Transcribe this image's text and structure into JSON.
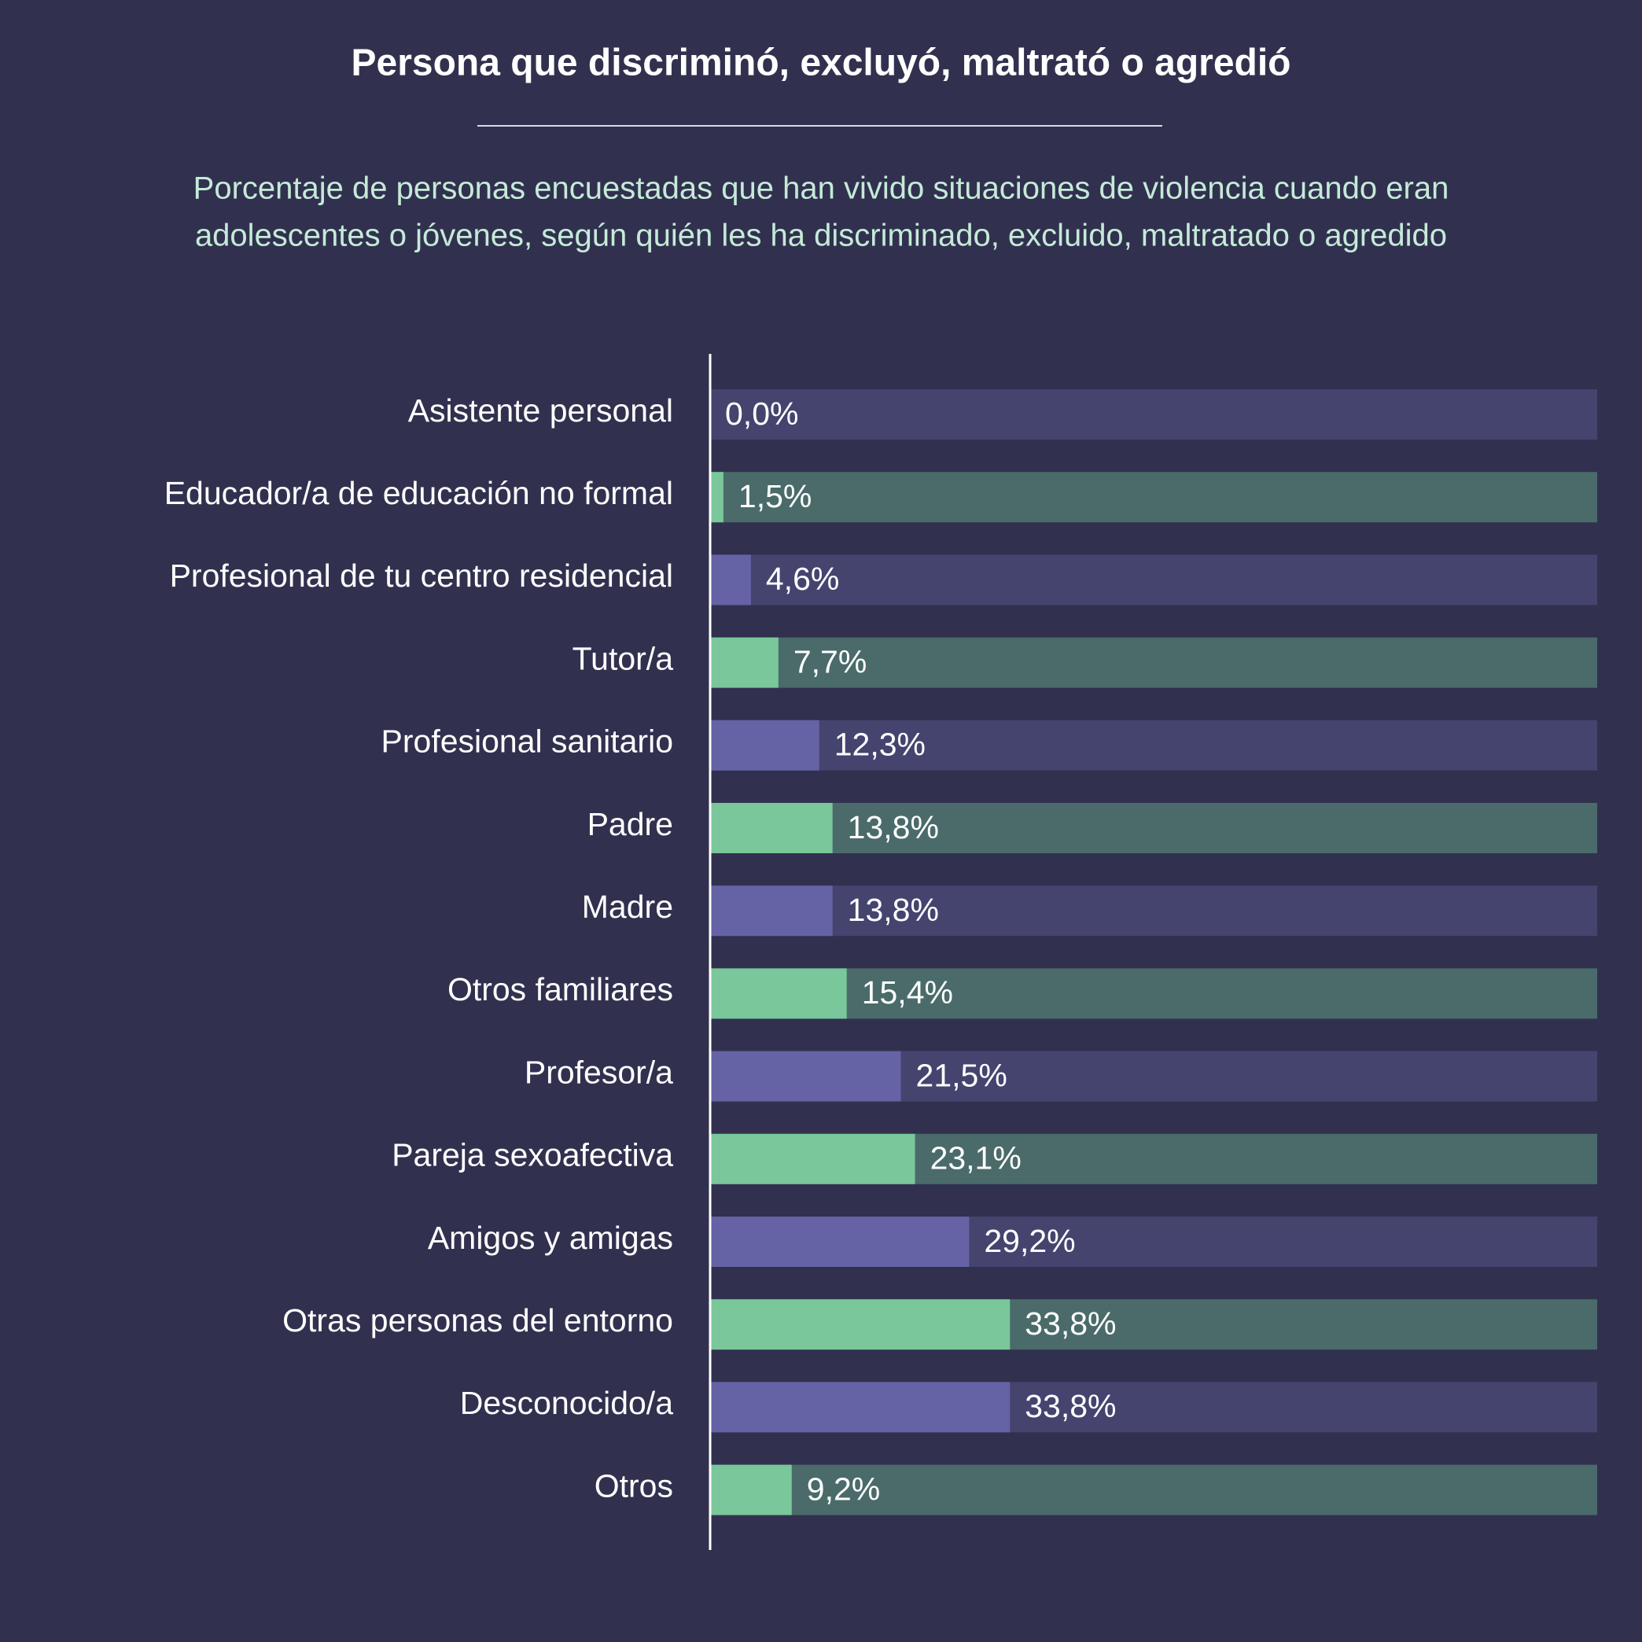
{
  "chart_data": {
    "type": "bar",
    "orientation": "horizontal",
    "title": "Persona que discriminó, excluyó, maltrató o agredió",
    "subtitle": [
      "Porcentaje de personas encuestadas que han vivido situaciones de violencia cuando eran",
      "adolescentes o jóvenes, según quién les ha discriminado, excluido, maltratado o agredido"
    ],
    "categories": [
      "Asistente personal",
      "Educador/a de educación no formal",
      "Profesional de tu centro residencial",
      "Tutor/a",
      "Profesional sanitario",
      "Padre",
      "Madre",
      "Otros familiares",
      "Profesor/a",
      "Pareja sexoafectiva",
      "Amigos y amigas",
      "Otras personas del entorno",
      "Desconocido/a",
      "Otros"
    ],
    "values": [
      0.0,
      1.5,
      4.6,
      7.7,
      12.3,
      13.8,
      13.8,
      15.4,
      21.5,
      23.1,
      29.2,
      33.8,
      33.8,
      9.2
    ],
    "value_labels": [
      "0,0%",
      "1,5%",
      "4,6%",
      "7,7%",
      "12,3%",
      "13,8%",
      "13,8%",
      "15,4%",
      "21,5%",
      "23,1%",
      "29,2%",
      "33,8%",
      "33,8%",
      "9,2%"
    ],
    "colors": [
      "#6563a5",
      "#79c79b"
    ],
    "track_colors": [
      "#45446f",
      "#4a6b6a"
    ],
    "xlim": [
      0,
      100
    ]
  }
}
